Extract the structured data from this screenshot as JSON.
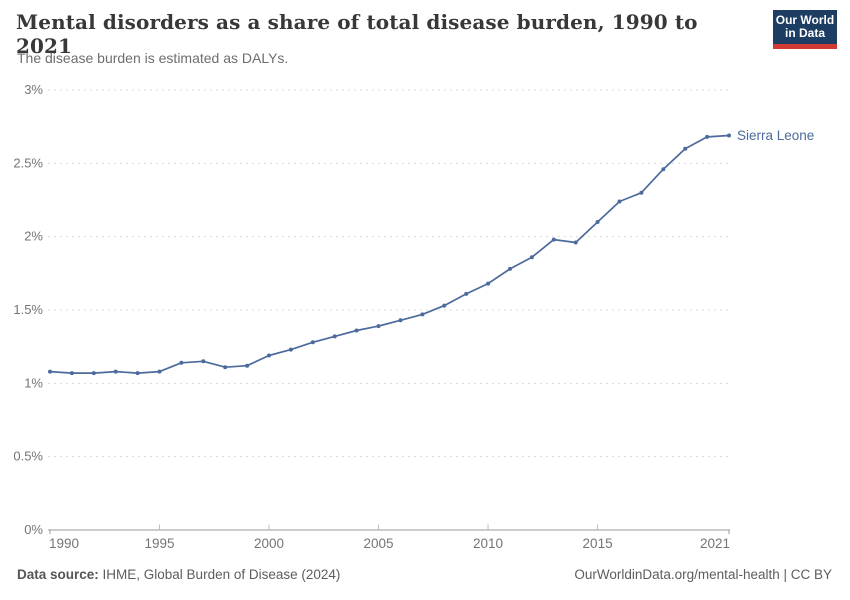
{
  "header": {
    "title": "Mental disorders as a share of total disease burden, 1990 to 2021",
    "subtitle": "The disease burden is estimated as DALYs.",
    "logo": {
      "line1": "Our World",
      "line2": "in Data",
      "bg_color": "#1d3d63",
      "accent_color": "#d13b32"
    }
  },
  "chart_data": {
    "type": "line",
    "title": "Mental disorders as a share of total disease burden, 1990 to 2021",
    "subtitle": "The disease burden is estimated as DALYs.",
    "xlabel": "",
    "ylabel": "",
    "x": [
      1990,
      1991,
      1992,
      1993,
      1994,
      1995,
      1996,
      1997,
      1998,
      1999,
      2000,
      2001,
      2002,
      2003,
      2004,
      2005,
      2006,
      2007,
      2008,
      2009,
      2010,
      2011,
      2012,
      2013,
      2014,
      2015,
      2016,
      2017,
      2018,
      2019,
      2020,
      2021
    ],
    "series": [
      {
        "name": "Sierra Leone",
        "color": "#4C6A9C",
        "values": [
          1.08,
          1.07,
          1.07,
          1.08,
          1.07,
          1.08,
          1.14,
          1.15,
          1.11,
          1.12,
          1.19,
          1.23,
          1.28,
          1.32,
          1.36,
          1.39,
          1.43,
          1.47,
          1.53,
          1.61,
          1.68,
          1.78,
          1.86,
          1.98,
          1.96,
          2.1,
          2.24,
          2.3,
          2.46,
          2.6,
          2.68,
          2.69
        ]
      }
    ],
    "ylim": [
      0,
      3
    ],
    "yticks": [
      0,
      0.5,
      1,
      1.5,
      2,
      2.5,
      3
    ],
    "ytick_labels": [
      "0%",
      "0.5%",
      "1%",
      "1.5%",
      "2%",
      "2.5%",
      "3%"
    ],
    "xticks": [
      1990,
      1995,
      2000,
      2005,
      2010,
      2015,
      2021
    ],
    "grid": true,
    "grid_color": "#dadada",
    "axis_color": "#999999",
    "tick_label_color": "#757575",
    "legend": "line-end-label"
  },
  "footer": {
    "source_bold": "Data source:",
    "source_rest": " IHME, Global Burden of Disease (2024)",
    "citation": "OurWorldinData.org/mental-health | CC BY"
  }
}
